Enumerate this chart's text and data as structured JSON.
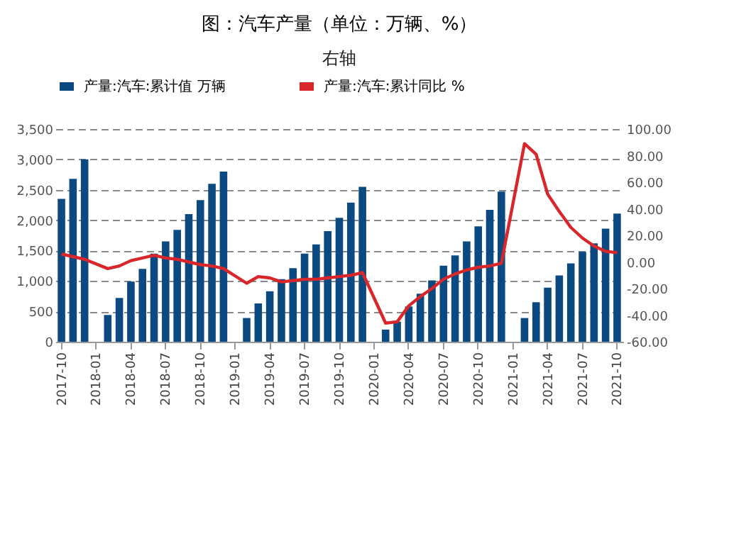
{
  "chart_data": {
    "type": "bar",
    "title": "图：汽车产量（单位：万辆、%）",
    "subtitle": "右轴",
    "categories": [
      "2017-10",
      null,
      null,
      "2018-01",
      null,
      null,
      "2018-04",
      null,
      null,
      "2018-07",
      null,
      null,
      "2018-10",
      null,
      null,
      "2019-01",
      null,
      null,
      "2019-04",
      null,
      null,
      "2019-07",
      null,
      null,
      "2019-10",
      null,
      null,
      "2020-01",
      null,
      null,
      "2020-04",
      null,
      null,
      "2020-07",
      null,
      null,
      "2020-10",
      null,
      null,
      "2021-01",
      null,
      null,
      "2021-04",
      null,
      null,
      "2021-07",
      null,
      null,
      "2021-10"
    ],
    "series": [
      {
        "name": "产量:汽车:累计值 万辆",
        "color": "#0b4a80",
        "values": [
          2350,
          2680,
          3000,
          null,
          440,
          720,
          990,
          1200,
          1450,
          1650,
          1840,
          2100,
          2330,
          2600,
          2800,
          null,
          390,
          630,
          830,
          1030,
          1210,
          1450,
          1600,
          1820,
          2040,
          2290,
          2550,
          null,
          200,
          330,
          580,
          790,
          1010,
          1250,
          1420,
          1650,
          1900,
          2170,
          2470,
          null,
          390,
          650,
          890,
          1090,
          1290,
          1480,
          1620,
          1860,
          2110
        ]
      },
      {
        "name": "产量:汽车:累计同比 %",
        "color": "#d9262b",
        "type": "line",
        "axis": "y2",
        "values": [
          6,
          4,
          2,
          null,
          -5,
          -3,
          1,
          3,
          5,
          3,
          2,
          0,
          -2,
          -3,
          -5,
          null,
          -16,
          -11,
          -12,
          -15,
          -14,
          -13,
          -13,
          -12,
          -11,
          -10,
          -8,
          null,
          -46,
          -45,
          -33,
          -26,
          -20,
          -13,
          -9,
          -6,
          -4,
          -3,
          -1,
          null,
          89,
          81,
          51,
          38,
          26,
          18,
          12,
          8,
          7
        ]
      }
    ],
    "ylim": [
      0,
      3500
    ],
    "yticks": [
      {
        "value": 0,
        "label": "0"
      },
      {
        "value": 500,
        "label": "500"
      },
      {
        "value": 1000,
        "label": "1,000"
      },
      {
        "value": 1500,
        "label": "1,500"
      },
      {
        "value": 2000,
        "label": "2,000"
      },
      {
        "value": 2500,
        "label": "2,500"
      },
      {
        "value": 3000,
        "label": "3,000"
      },
      {
        "value": 3500,
        "label": "3,500"
      }
    ],
    "y2lim": [
      -60,
      100
    ],
    "y2ticks": [
      {
        "value": -60,
        "label": "-60.00"
      },
      {
        "value": -40,
        "label": "-40.00"
      },
      {
        "value": -20,
        "label": "-20.00"
      },
      {
        "value": 0,
        "label": "0.00"
      },
      {
        "value": 20,
        "label": "20.00"
      },
      {
        "value": 40,
        "label": "40.00"
      },
      {
        "value": 60,
        "label": "60.00"
      },
      {
        "value": 80,
        "label": "80.00"
      },
      {
        "value": 100,
        "label": "100.00"
      }
    ],
    "grid": "y",
    "legend": "top",
    "line_style": "solid",
    "marker": "none"
  }
}
